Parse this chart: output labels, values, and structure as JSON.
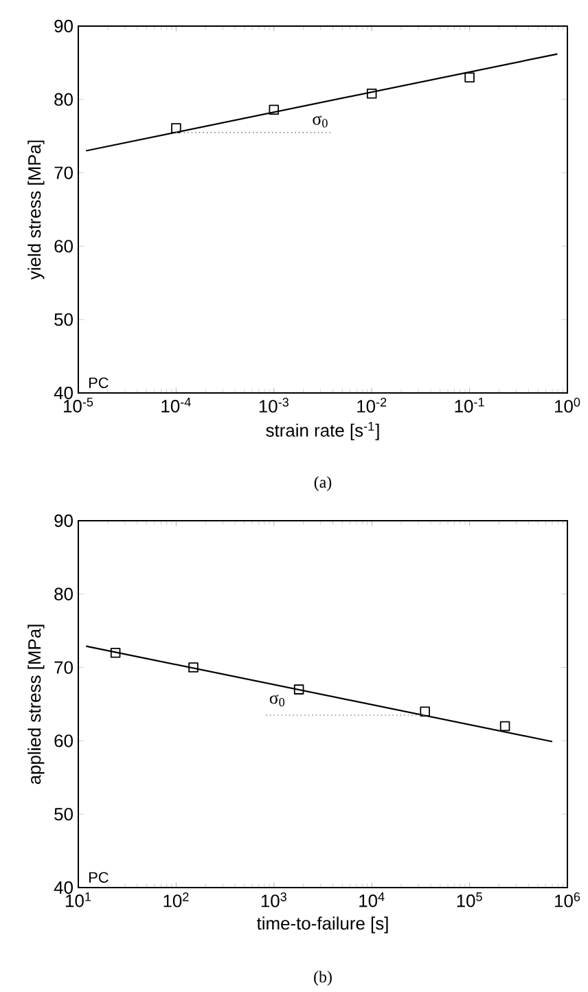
{
  "chart_data": [
    {
      "type": "scatter",
      "xlabel": "strain rate [s$^{-1}$]",
      "ylabel": "yield stress [MPa]",
      "log": "x",
      "marker": "square",
      "xlim": [
        1e-05,
        1
      ],
      "ylim": [
        40,
        90
      ],
      "xticks": [
        {
          "value": 1e-05,
          "label": "10$^{-5}$"
        },
        {
          "value": 0.0001,
          "label": "10$^{-4}$"
        },
        {
          "value": 0.001,
          "label": "10$^{-3}$"
        },
        {
          "value": 0.01,
          "label": "10$^{-2}$"
        },
        {
          "value": 0.1,
          "label": "10$^{-1}$"
        },
        {
          "value": 1,
          "label": "10$^{0}$"
        }
      ],
      "yticks": [
        40,
        50,
        60,
        70,
        80,
        90
      ],
      "series": [
        {
          "color": "#000000",
          "x": [
            0.0001,
            0.001,
            0.01,
            0.1
          ],
          "values": [
            76.1,
            78.6,
            80.8,
            83.0
          ]
        },
        {
          "type": "line",
          "color": "#000000",
          "marker": "none",
          "line_style": "solid",
          "x": [
            1.2e-05,
            0.79
          ],
          "values": [
            73.0,
            86.2
          ]
        },
        {
          "type": "line",
          "color": "#888888",
          "marker": "none",
          "line_style": "dotted",
          "x": [
            0.0001,
            0.0039
          ],
          "values": [
            75.5,
            75.5
          ]
        }
      ],
      "annotations": [
        "PC",
        "σ$_{0}$",
        "(a)"
      ]
    },
    {
      "type": "scatter",
      "xlabel": "time-to-failure [s]",
      "ylabel": "applied stress [MPa]",
      "log": "x",
      "marker": "square",
      "xlim": [
        10,
        1000000.0
      ],
      "ylim": [
        40,
        90
      ],
      "xticks": [
        {
          "value": 10,
          "label": "10$^{1}$"
        },
        {
          "value": 100,
          "label": "10$^{2}$"
        },
        {
          "value": 1000,
          "label": "10$^{3}$"
        },
        {
          "value": 10000,
          "label": "10$^{4}$"
        },
        {
          "value": 100000,
          "label": "10$^{5}$"
        },
        {
          "value": 1000000,
          "label": "10$^{6}$"
        }
      ],
      "yticks": [
        40,
        50,
        60,
        70,
        80,
        90
      ],
      "series": [
        {
          "color": "#000000",
          "x": [
            24,
            150,
            1800,
            35000,
            230000
          ],
          "values": [
            72.0,
            70.0,
            67.0,
            64.0,
            62.0
          ]
        },
        {
          "type": "line",
          "color": "#000000",
          "marker": "none",
          "line_style": "solid",
          "x": [
            12,
            700000.0
          ],
          "values": [
            72.9,
            59.9
          ]
        },
        {
          "type": "line",
          "color": "#888888",
          "marker": "none",
          "line_style": "dotted",
          "x": [
            830,
            35000
          ],
          "values": [
            63.5,
            63.5
          ]
        }
      ],
      "annotations": [
        "PC",
        "σ$_{0}$",
        "(b)"
      ]
    }
  ]
}
